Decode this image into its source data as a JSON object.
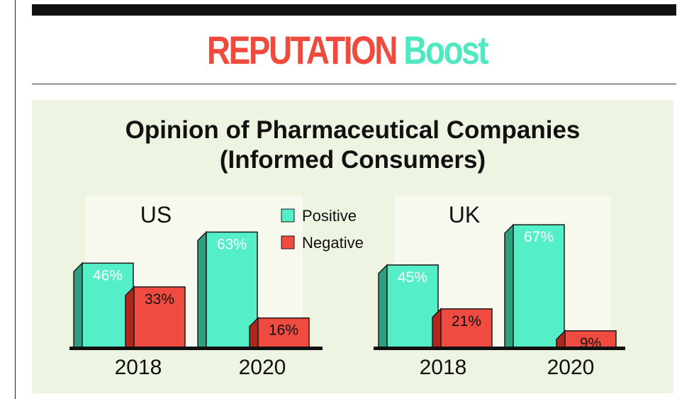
{
  "headline": {
    "word1": "REPUTATION",
    "word2": "Boost"
  },
  "colors": {
    "positive": "#54efc8",
    "positive_shade": "#2ea082",
    "negative": "#f04b40",
    "negative_shade": "#b0261d",
    "panel": "#eef4e2",
    "backdrop": "#f7f9ef",
    "headline_red": "#ef4a3c",
    "headline_teal": "#4fe8c0"
  },
  "chart_data": {
    "type": "bar",
    "title": "Opinion of Pharmaceutical Companies",
    "subtitle": "(Informed Consumers)",
    "legend": [
      {
        "name": "Positive",
        "color": "#54efc8"
      },
      {
        "name": "Negative",
        "color": "#f04b40"
      }
    ],
    "legend_position": "top-center",
    "ylim": [
      0,
      100
    ],
    "value_suffix": "%",
    "panels": [
      {
        "region": "US",
        "categories": [
          "2018",
          "2020"
        ],
        "series": [
          {
            "name": "Positive",
            "values": [
              46,
              63
            ],
            "labels": [
              "46%",
              "63%"
            ]
          },
          {
            "name": "Negative",
            "values": [
              33,
              16
            ],
            "labels": [
              "33%",
              "16%"
            ]
          }
        ]
      },
      {
        "region": "UK",
        "categories": [
          "2018",
          "2020"
        ],
        "series": [
          {
            "name": "Positive",
            "values": [
              45,
              67
            ],
            "labels": [
              "45%",
              "67%"
            ]
          },
          {
            "name": "Negative",
            "values": [
              21,
              9
            ],
            "labels": [
              "21%",
              "9%"
            ]
          }
        ]
      }
    ]
  }
}
